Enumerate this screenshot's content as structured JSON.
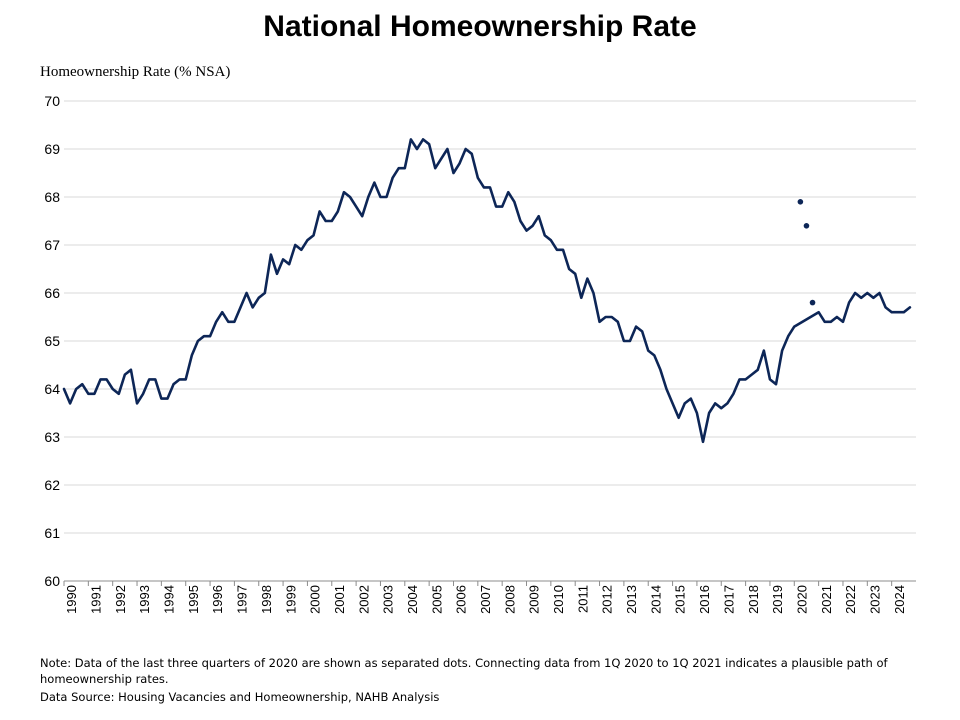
{
  "chart_data": {
    "type": "line",
    "title": "National Homeownership Rate",
    "ylabel": "Homeownership Rate (% NSA)",
    "ylim": [
      60,
      70
    ],
    "yticks": [
      "60",
      "61",
      "62",
      "63",
      "64",
      "65",
      "66",
      "67",
      "68",
      "69",
      "70"
    ],
    "xlim": [
      1990,
      2025
    ],
    "xticks": [
      "1990",
      "1991",
      "1992",
      "1993",
      "1994",
      "1995",
      "1996",
      "1997",
      "1998",
      "1999",
      "2000",
      "2001",
      "2002",
      "2003",
      "2004",
      "2005",
      "2006",
      "2007",
      "2008",
      "2009",
      "2010",
      "2011",
      "2012",
      "2013",
      "2014",
      "2015",
      "2016",
      "2017",
      "2018",
      "2019",
      "2020",
      "2021",
      "2022",
      "2023",
      "2024"
    ],
    "grid": true,
    "line_color": "#0d2657",
    "series": [
      {
        "x": [
          1990.0,
          1990.25,
          1990.5,
          1990.75,
          1991.0,
          1991.25,
          1991.5,
          1991.75,
          1992.0,
          1992.25,
          1992.5,
          1992.75,
          1993.0,
          1993.25,
          1993.5,
          1993.75,
          1994.0,
          1994.25,
          1994.5,
          1994.75,
          1995.0,
          1995.25,
          1995.5,
          1995.75,
          1996.0,
          1996.25,
          1996.5,
          1996.75,
          1997.0,
          1997.25,
          1997.5,
          1997.75,
          1998.0,
          1998.25,
          1998.5,
          1998.75,
          1999.0,
          1999.25,
          1999.5,
          1999.75,
          2000.0,
          2000.25,
          2000.5,
          2000.75,
          2001.0,
          2001.25,
          2001.5,
          2001.75,
          2002.0,
          2002.25,
          2002.5,
          2002.75,
          2003.0,
          2003.25,
          2003.5,
          2003.75,
          2004.0,
          2004.25,
          2004.5,
          2004.75,
          2005.0,
          2005.25,
          2005.5,
          2005.75,
          2006.0,
          2006.25,
          2006.5,
          2006.75,
          2007.0,
          2007.25,
          2007.5,
          2007.75,
          2008.0,
          2008.25,
          2008.5,
          2008.75,
          2009.0,
          2009.25,
          2009.5,
          2009.75,
          2010.0,
          2010.25,
          2010.5,
          2010.75,
          2011.0,
          2011.25,
          2011.5,
          2011.75,
          2012.0,
          2012.25,
          2012.5,
          2012.75,
          2013.0,
          2013.25,
          2013.5,
          2013.75,
          2014.0,
          2014.25,
          2014.5,
          2014.75,
          2015.0,
          2015.25,
          2015.5,
          2015.75,
          2016.0,
          2016.25,
          2016.5,
          2016.75,
          2017.0,
          2017.25,
          2017.5,
          2017.75,
          2018.0,
          2018.25,
          2018.5,
          2018.75,
          2019.0,
          2019.25,
          2019.5,
          2019.75,
          2020.0,
          2021.0,
          2021.25,
          2021.5,
          2021.75,
          2022.0,
          2022.25,
          2022.5,
          2022.75,
          2023.0,
          2023.25,
          2023.5,
          2023.75,
          2024.0,
          2024.25,
          2024.5,
          2024.75
        ],
        "values": [
          64.0,
          63.7,
          64.0,
          64.1,
          63.9,
          63.9,
          64.2,
          64.2,
          64.0,
          63.9,
          64.3,
          64.4,
          63.7,
          63.9,
          64.2,
          64.2,
          63.8,
          63.8,
          64.1,
          64.2,
          64.2,
          64.7,
          65.0,
          65.1,
          65.1,
          65.4,
          65.6,
          65.4,
          65.4,
          65.7,
          66.0,
          65.7,
          65.9,
          66.0,
          66.8,
          66.4,
          66.7,
          66.6,
          67.0,
          66.9,
          67.1,
          67.2,
          67.7,
          67.5,
          67.5,
          67.7,
          68.1,
          68.0,
          67.8,
          67.6,
          68.0,
          68.3,
          68.0,
          68.0,
          68.4,
          68.6,
          68.6,
          69.2,
          69.0,
          69.2,
          69.1,
          68.6,
          68.8,
          69.0,
          68.5,
          68.7,
          69.0,
          68.9,
          68.4,
          68.2,
          68.2,
          67.8,
          67.8,
          68.1,
          67.9,
          67.5,
          67.3,
          67.4,
          67.6,
          67.2,
          67.1,
          66.9,
          66.9,
          66.5,
          66.4,
          65.9,
          66.3,
          66.0,
          65.4,
          65.5,
          65.5,
          65.4,
          65.0,
          65.0,
          65.3,
          65.2,
          64.8,
          64.7,
          64.4,
          64.0,
          63.7,
          63.4,
          63.7,
          63.8,
          63.5,
          62.9,
          63.5,
          63.7,
          63.6,
          63.7,
          63.9,
          64.2,
          64.2,
          64.3,
          64.4,
          64.8,
          64.2,
          64.1,
          64.8,
          65.1,
          65.3,
          65.6,
          65.4,
          65.4,
          65.5,
          65.4,
          65.8,
          66.0,
          65.9,
          66.0,
          65.9,
          66.0,
          65.7,
          65.6,
          65.6,
          65.6,
          65.7
        ]
      }
    ],
    "separated_points": [
      {
        "x": 2020.25,
        "value": 67.9
      },
      {
        "x": 2020.5,
        "value": 67.4
      },
      {
        "x": 2020.75,
        "value": 65.8
      }
    ]
  },
  "note": "Note: Data of the last three quarters of 2020 are shown as separated dots. Connecting data from 1Q 2020 to 1Q 2021 indicates a plausible path of homeownership rates.",
  "source": "Data Source: Housing Vacancies and Homeownership, NAHB Analysis"
}
